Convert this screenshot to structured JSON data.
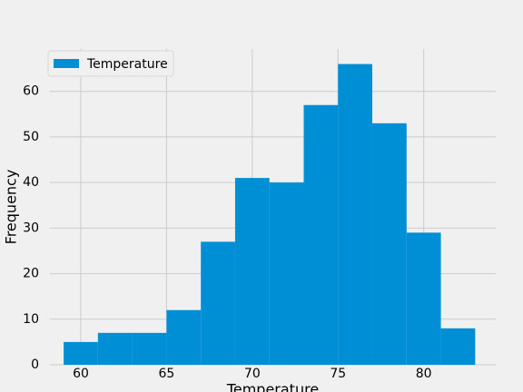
{
  "chart_data": {
    "type": "histogram",
    "xlabel": "Temperature",
    "ylabel": "Frequency",
    "bins": [
      59,
      61,
      63,
      65,
      67,
      69,
      71,
      73,
      75,
      77,
      79,
      81,
      83
    ],
    "series": [
      {
        "name": "Temperature",
        "color": "#008fd5",
        "values": [
          5,
          7,
          7,
          12,
          27,
          41,
          40,
          57,
          66,
          53,
          29,
          8
        ]
      }
    ],
    "xlim": [
      58.2,
      84.2
    ],
    "xticks": [
      60,
      65,
      70,
      75,
      80
    ],
    "ylim": [
      0,
      69.3
    ],
    "yticks": [
      0,
      10,
      20,
      30,
      40,
      50,
      60
    ],
    "grid": true,
    "legend": "upper left"
  }
}
